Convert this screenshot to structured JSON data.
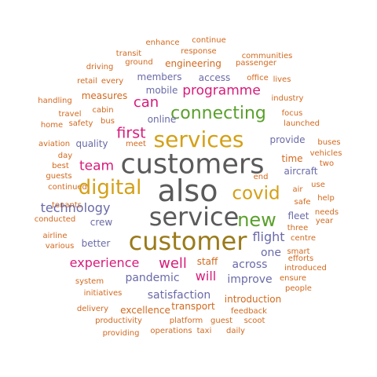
{
  "colors": {
    "orange": "#d2691e",
    "purple": "#6a6aa8",
    "pink": "#d81b7a",
    "green": "#5aa02c",
    "gold": "#d4a017",
    "gray": "#5a5a5a",
    "olive": "#9a7a1a"
  },
  "words": [
    {
      "text": "enhance",
      "color": "orange"
    },
    {
      "text": "continue",
      "color": "orange"
    },
    {
      "text": "transit",
      "color": "orange"
    },
    {
      "text": "response",
      "color": "orange"
    },
    {
      "text": "communities",
      "color": "orange"
    },
    {
      "text": "driving",
      "color": "orange"
    },
    {
      "text": "ground",
      "color": "orange"
    },
    {
      "text": "engineering",
      "color": "orange"
    },
    {
      "text": "passenger",
      "color": "orange"
    },
    {
      "text": "retail",
      "color": "orange"
    },
    {
      "text": "every",
      "color": "orange"
    },
    {
      "text": "members",
      "color": "purple"
    },
    {
      "text": "access",
      "color": "purple"
    },
    {
      "text": "office",
      "color": "orange"
    },
    {
      "text": "lives",
      "color": "orange"
    },
    {
      "text": "mobile",
      "color": "purple"
    },
    {
      "text": "programme",
      "color": "pink"
    },
    {
      "text": "handling",
      "color": "orange"
    },
    {
      "text": "measures",
      "color": "orange"
    },
    {
      "text": "industry",
      "color": "orange"
    },
    {
      "text": "can",
      "color": "pink"
    },
    {
      "text": "cabin",
      "color": "orange"
    },
    {
      "text": "travel",
      "color": "orange"
    },
    {
      "text": "connecting",
      "color": "green"
    },
    {
      "text": "focus",
      "color": "orange"
    },
    {
      "text": "bus",
      "color": "orange"
    },
    {
      "text": "online",
      "color": "purple"
    },
    {
      "text": "home",
      "color": "orange"
    },
    {
      "text": "safety",
      "color": "orange"
    },
    {
      "text": "launched",
      "color": "orange"
    },
    {
      "text": "first",
      "color": "pink"
    },
    {
      "text": "services",
      "color": "gold"
    },
    {
      "text": "aviation",
      "color": "orange"
    },
    {
      "text": "quality",
      "color": "purple"
    },
    {
      "text": "meet",
      "color": "orange"
    },
    {
      "text": "provide",
      "color": "purple"
    },
    {
      "text": "buses",
      "color": "orange"
    },
    {
      "text": "vehicles",
      "color": "orange"
    },
    {
      "text": "day",
      "color": "orange"
    },
    {
      "text": "time",
      "color": "orange"
    },
    {
      "text": "customers",
      "color": "gray"
    },
    {
      "text": "two",
      "color": "orange"
    },
    {
      "text": "best",
      "color": "orange"
    },
    {
      "text": "team",
      "color": "pink"
    },
    {
      "text": "aircraft",
      "color": "purple"
    },
    {
      "text": "guests",
      "color": "orange"
    },
    {
      "text": "end",
      "color": "orange"
    },
    {
      "text": "use",
      "color": "orange"
    },
    {
      "text": "continued",
      "color": "orange"
    },
    {
      "text": "digital",
      "color": "gold"
    },
    {
      "text": "also",
      "color": "gray"
    },
    {
      "text": "covid",
      "color": "gold"
    },
    {
      "text": "air",
      "color": "orange"
    },
    {
      "text": "help",
      "color": "orange"
    },
    {
      "text": "tenants",
      "color": "orange"
    },
    {
      "text": "safe",
      "color": "orange"
    },
    {
      "text": "technology",
      "color": "purple"
    },
    {
      "text": "needs",
      "color": "orange"
    },
    {
      "text": "conducted",
      "color": "orange"
    },
    {
      "text": "new",
      "color": "green"
    },
    {
      "text": "fleet",
      "color": "purple"
    },
    {
      "text": "year",
      "color": "orange"
    },
    {
      "text": "service",
      "color": "gray"
    },
    {
      "text": "crew",
      "color": "purple"
    },
    {
      "text": "airline",
      "color": "orange"
    },
    {
      "text": "three",
      "color": "orange"
    },
    {
      "text": "flight",
      "color": "purple"
    },
    {
      "text": "better",
      "color": "purple"
    },
    {
      "text": "centre",
      "color": "orange"
    },
    {
      "text": "various",
      "color": "orange"
    },
    {
      "text": "customer",
      "color": "olive"
    },
    {
      "text": "smart",
      "color": "orange"
    },
    {
      "text": "one",
      "color": "purple"
    },
    {
      "text": "efforts",
      "color": "orange"
    },
    {
      "text": "staff",
      "color": "orange"
    },
    {
      "text": "experience",
      "color": "pink"
    },
    {
      "text": "well",
      "color": "pink"
    },
    {
      "text": "across",
      "color": "purple"
    },
    {
      "text": "introduced",
      "color": "orange"
    },
    {
      "text": "will",
      "color": "pink"
    },
    {
      "text": "pandemic",
      "color": "purple"
    },
    {
      "text": "ensure",
      "color": "orange"
    },
    {
      "text": "system",
      "color": "orange"
    },
    {
      "text": "improve",
      "color": "purple"
    },
    {
      "text": "people",
      "color": "orange"
    },
    {
      "text": "initiatives",
      "color": "orange"
    },
    {
      "text": "satisfaction",
      "color": "purple"
    },
    {
      "text": "introduction",
      "color": "orange"
    },
    {
      "text": "transport",
      "color": "orange"
    },
    {
      "text": "delivery",
      "color": "orange"
    },
    {
      "text": "excellence",
      "color": "orange"
    },
    {
      "text": "feedback",
      "color": "orange"
    },
    {
      "text": "productivity",
      "color": "orange"
    },
    {
      "text": "platform",
      "color": "orange"
    },
    {
      "text": "guest",
      "color": "orange"
    },
    {
      "text": "scoot",
      "color": "orange"
    },
    {
      "text": "providing",
      "color": "orange"
    },
    {
      "text": "operations",
      "color": "orange"
    },
    {
      "text": "taxi",
      "color": "orange"
    },
    {
      "text": "daily",
      "color": "orange"
    }
  ]
}
